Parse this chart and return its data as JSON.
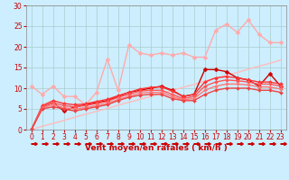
{
  "xlabel": "Vent moyen/en rafales ( km/h )",
  "bg_color": "#cceeff",
  "grid_color": "#aacccc",
  "xlim": [
    -0.5,
    23.5
  ],
  "ylim": [
    0,
    30
  ],
  "yticks": [
    0,
    5,
    10,
    15,
    20,
    25,
    30
  ],
  "xticks": [
    0,
    1,
    2,
    3,
    4,
    5,
    6,
    7,
    8,
    9,
    10,
    11,
    12,
    13,
    14,
    15,
    16,
    17,
    18,
    19,
    20,
    21,
    22,
    23
  ],
  "series": [
    {
      "x": [
        0,
        1,
        2,
        3,
        4,
        5,
        6,
        7,
        8,
        9,
        10,
        11,
        12,
        13,
        14,
        15,
        16,
        17,
        18,
        19,
        20,
        21,
        22,
        23
      ],
      "y": [
        10.5,
        8.5,
        10.5,
        8.0,
        8.0,
        6.0,
        9.0,
        17.0,
        9.5,
        20.5,
        18.5,
        18.0,
        18.5,
        18.0,
        18.5,
        17.5,
        17.5,
        24.0,
        25.5,
        23.5,
        26.5,
        23.0,
        21.0,
        21.0
      ],
      "color": "#ffaaaa",
      "lw": 1.0,
      "marker": "D",
      "ms": 2.5
    },
    {
      "x": [
        0,
        1,
        2,
        3,
        4,
        5,
        6,
        7,
        8,
        9,
        10,
        11,
        12,
        13,
        14,
        15,
        16,
        17,
        18,
        19,
        20,
        21,
        22,
        23
      ],
      "y": [
        0.0,
        0.8,
        1.5,
        2.2,
        3.0,
        3.7,
        4.4,
        5.1,
        5.9,
        6.6,
        7.3,
        8.0,
        8.8,
        9.5,
        10.2,
        10.9,
        11.7,
        12.4,
        13.1,
        13.8,
        14.6,
        15.3,
        16.0,
        16.8
      ],
      "color": "#ffbbbb",
      "lw": 1.0,
      "marker": null,
      "ms": 0
    },
    {
      "x": [
        0,
        1,
        2,
        3,
        4,
        5,
        6,
        7,
        8,
        9,
        10,
        11,
        12,
        13,
        14,
        15,
        16,
        17,
        18,
        19,
        20,
        21,
        22,
        23
      ],
      "y": [
        0.0,
        5.5,
        6.5,
        4.5,
        5.5,
        6.0,
        6.5,
        7.0,
        8.0,
        9.0,
        9.5,
        10.0,
        10.5,
        9.5,
        8.0,
        8.5,
        14.5,
        14.5,
        14.0,
        12.5,
        12.0,
        10.5,
        13.5,
        10.5
      ],
      "color": "#cc0000",
      "lw": 1.0,
      "marker": "D",
      "ms": 2.5
    },
    {
      "x": [
        0,
        1,
        2,
        3,
        4,
        5,
        6,
        7,
        8,
        9,
        10,
        11,
        12,
        13,
        14,
        15,
        16,
        17,
        18,
        19,
        20,
        21,
        22,
        23
      ],
      "y": [
        0.0,
        5.8,
        7.0,
        6.3,
        6.0,
        6.2,
        6.8,
        7.3,
        8.2,
        9.0,
        9.8,
        10.2,
        10.3,
        9.3,
        8.0,
        8.5,
        11.5,
        12.5,
        12.8,
        12.5,
        12.0,
        11.5,
        11.5,
        11.0
      ],
      "color": "#ff3333",
      "lw": 1.0,
      "marker": "D",
      "ms": 2.0
    },
    {
      "x": [
        0,
        1,
        2,
        3,
        4,
        5,
        6,
        7,
        8,
        9,
        10,
        11,
        12,
        13,
        14,
        15,
        16,
        17,
        18,
        19,
        20,
        21,
        22,
        23
      ],
      "y": [
        0.0,
        5.5,
        6.5,
        5.8,
        5.5,
        5.8,
        6.3,
        6.8,
        7.8,
        8.5,
        9.3,
        9.5,
        9.5,
        8.5,
        7.5,
        8.0,
        10.5,
        11.5,
        12.0,
        11.8,
        11.5,
        11.0,
        11.0,
        10.5
      ],
      "color": "#ff5555",
      "lw": 1.0,
      "marker": "D",
      "ms": 2.0
    },
    {
      "x": [
        0,
        1,
        2,
        3,
        4,
        5,
        6,
        7,
        8,
        9,
        10,
        11,
        12,
        13,
        14,
        15,
        16,
        17,
        18,
        19,
        20,
        21,
        22,
        23
      ],
      "y": [
        0.0,
        5.2,
        6.0,
        5.3,
        5.0,
        5.3,
        5.8,
        6.3,
        7.3,
        8.0,
        8.8,
        9.0,
        9.0,
        8.0,
        7.2,
        7.5,
        9.5,
        10.5,
        11.0,
        11.0,
        10.8,
        10.3,
        10.3,
        9.8
      ],
      "color": "#ff7777",
      "lw": 1.0,
      "marker": "D",
      "ms": 2.0
    },
    {
      "x": [
        0,
        1,
        2,
        3,
        4,
        5,
        6,
        7,
        8,
        9,
        10,
        11,
        12,
        13,
        14,
        15,
        16,
        17,
        18,
        19,
        20,
        21,
        22,
        23
      ],
      "y": [
        0.0,
        5.0,
        5.5,
        5.0,
        4.5,
        5.0,
        5.5,
        6.0,
        7.0,
        7.8,
        8.3,
        8.5,
        8.5,
        7.5,
        7.0,
        7.0,
        8.5,
        9.5,
        10.0,
        10.0,
        10.0,
        9.5,
        9.5,
        9.0
      ],
      "color": "#ee4444",
      "lw": 1.0,
      "marker": "D",
      "ms": 2.0
    }
  ],
  "arrow_color": "#cc0000",
  "xlabel_color": "#cc0000",
  "tick_color": "#cc0000",
  "fontsize_xlabel": 6.5,
  "fontsize_ticks": 5.5
}
